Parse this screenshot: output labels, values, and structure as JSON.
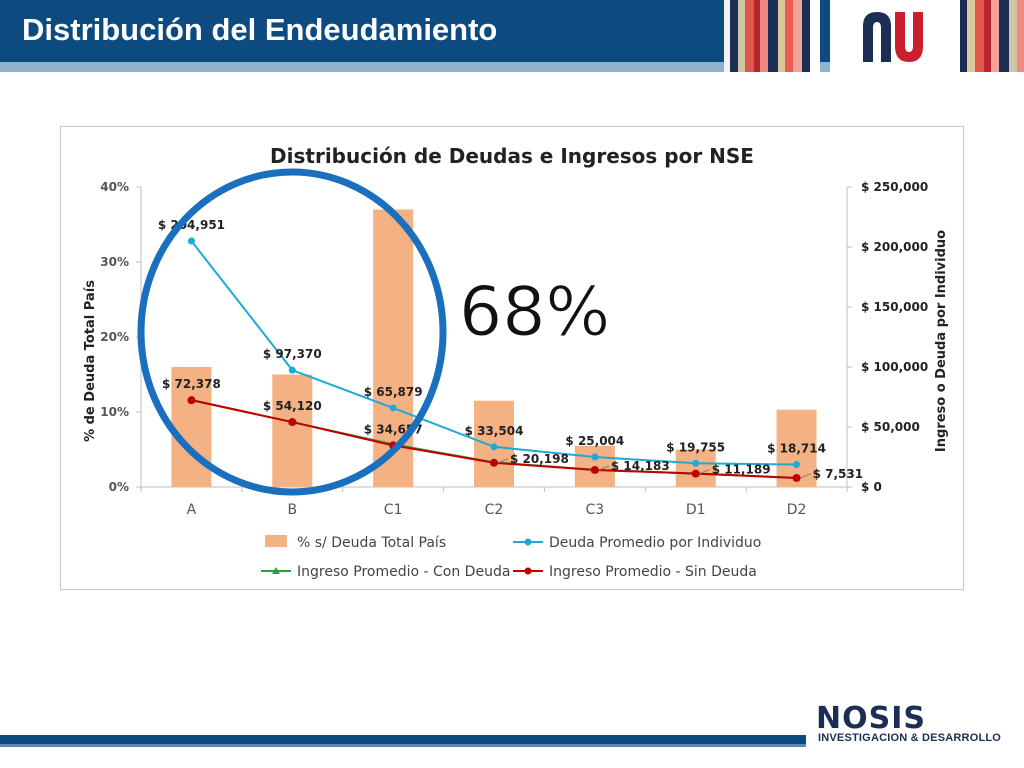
{
  "slide": {
    "title": "Distribución del Endeudamiento",
    "callout": "68%",
    "brand": "NOSIS",
    "brand_sub": "INVESTIGACION & DESARROLLO"
  },
  "colors": {
    "header": "#0d4a80",
    "bar": "#f4b183",
    "line_deuda": "#1fa9d6",
    "line_con_deuda": "#2e9e3c",
    "line_sin_deuda": "#c00000",
    "circle": "#1a6fbf",
    "logo_red": "#cc1f2e",
    "logo_blue": "#1c2e54"
  },
  "chart_data": {
    "type": "bar",
    "title": "Distribución de Deudas e Ingresos por NSE",
    "categories": [
      "A",
      "B",
      "C1",
      "C2",
      "C3",
      "D1",
      "D2"
    ],
    "ylabel": "% de Deuda Total País",
    "y2label": "Ingreso o Deuda por Individuo",
    "ylim": [
      0,
      40
    ],
    "y2lim": [
      0,
      250000
    ],
    "yticks": [
      "0%",
      "10%",
      "20%",
      "30%",
      "40%"
    ],
    "y2ticks": [
      "$ 0",
      "$ 50,000",
      "$ 100,000",
      "$ 150,000",
      "$ 200,000",
      "$ 250,000"
    ],
    "grid": false,
    "legend_position": "bottom",
    "series": [
      {
        "name": "% s/ Deuda Total País",
        "kind": "bar",
        "axis": "left",
        "values": [
          16,
          15,
          37,
          11.5,
          5.5,
          5,
          10.3
        ]
      },
      {
        "name": "Deuda Promedio por Individuo",
        "kind": "line",
        "axis": "right",
        "values": [
          204951,
          97370,
          65879,
          33504,
          25004,
          19755,
          18714
        ],
        "labels": [
          "$ 204,951",
          "$ 97,370",
          "$ 65,879",
          "$ 33,504",
          "$ 25,004",
          "$ 19,755",
          "$ 18,714"
        ]
      },
      {
        "name": "Ingreso Promedio - Con Deuda",
        "kind": "line",
        "axis": "right",
        "values": [
          72378,
          54120,
          35500,
          20500,
          14400,
          11300,
          7600
        ]
      },
      {
        "name": "Ingreso Promedio - Sin Deuda",
        "kind": "line",
        "axis": "right",
        "values": [
          72378,
          54120,
          34657,
          20198,
          14183,
          11189,
          7531
        ],
        "labels": [
          "$ 72,378",
          "$ 54,120",
          "$ 34,657",
          "$ 20,198",
          "$ 14,183",
          "$ 11,189",
          "$ 7,531"
        ]
      }
    ]
  }
}
